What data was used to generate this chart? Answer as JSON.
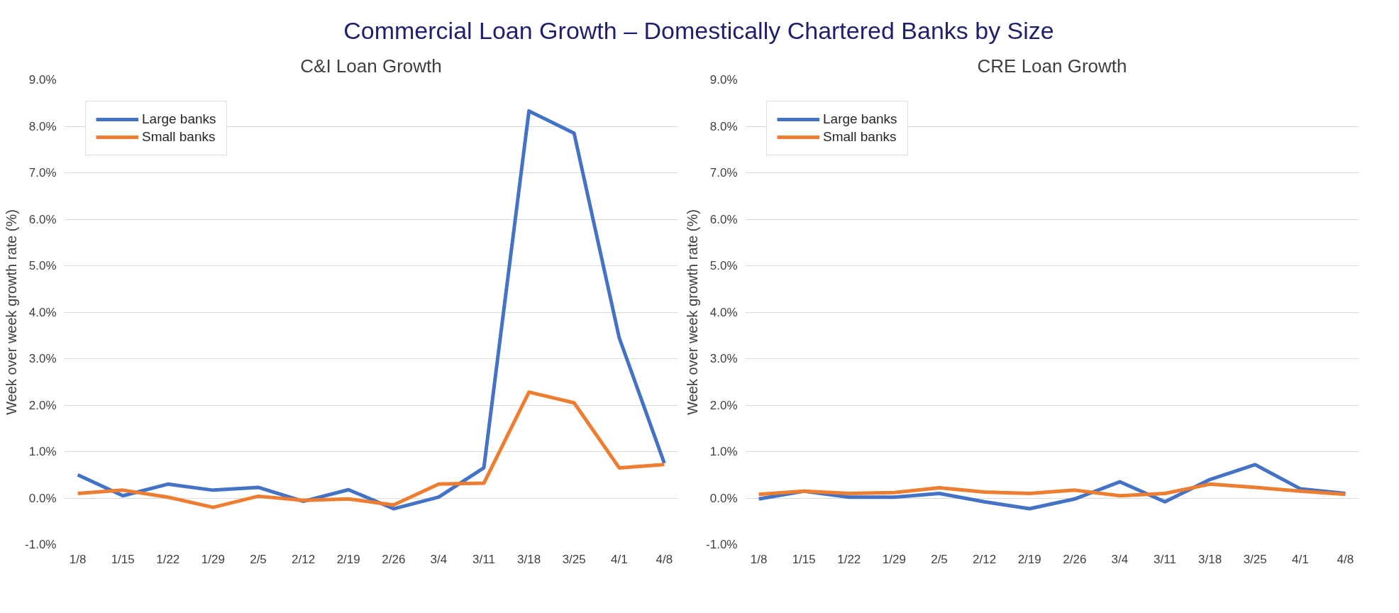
{
  "chart_data": [
    {
      "type": "line",
      "title": "Commercial Loan Growth – Domestically Chartered Banks by Size",
      "subtitle": "C&I Loan Growth",
      "ylabel": "Week over week growth rate (%)",
      "categories": [
        "1/8",
        "1/15",
        "1/22",
        "1/29",
        "2/5",
        "2/12",
        "2/19",
        "2/26",
        "3/4",
        "3/11",
        "3/18",
        "3/25",
        "4/1",
        "4/8"
      ],
      "series": [
        {
          "name": "Large banks",
          "color": "#4472c4",
          "values": [
            0.5,
            0.05,
            0.3,
            0.17,
            0.23,
            -0.07,
            0.18,
            -0.23,
            0.02,
            0.65,
            8.33,
            7.85,
            3.45,
            0.75
          ]
        },
        {
          "name": "Small banks",
          "color": "#ed7d31",
          "values": [
            0.1,
            0.17,
            0.02,
            -0.2,
            0.04,
            -0.05,
            -0.02,
            -0.15,
            0.3,
            0.32,
            2.28,
            2.05,
            0.65,
            0.72
          ]
        }
      ],
      "ylim": [
        -1,
        9
      ],
      "yticks": [
        {
          "value": -1,
          "label": "-1.0%"
        },
        {
          "value": 0,
          "label": "0.0%"
        },
        {
          "value": 1,
          "label": "1.0%"
        },
        {
          "value": 2,
          "label": "2.0%"
        },
        {
          "value": 3,
          "label": "3.0%"
        },
        {
          "value": 4,
          "label": "4.0%"
        },
        {
          "value": 5,
          "label": "5.0%"
        },
        {
          "value": 6,
          "label": "6.0%"
        },
        {
          "value": 7,
          "label": "7.0%"
        },
        {
          "value": 8,
          "label": "8.0%"
        },
        {
          "value": 9,
          "label": "9.0%"
        }
      ],
      "grid": "y",
      "legend": "top left",
      "marker": "none",
      "line_style": "solid"
    },
    {
      "type": "line",
      "title": "CRE Loan Growth",
      "ylabel": "Week over week growth rate (%)",
      "categories": [
        "1/8",
        "1/15",
        "1/22",
        "1/29",
        "2/5",
        "2/12",
        "2/19",
        "2/26",
        "3/4",
        "3/11",
        "3/18",
        "3/25",
        "4/1",
        "4/8"
      ],
      "series": [
        {
          "name": "Large banks",
          "color": "#4472c4",
          "values": [
            -0.02,
            0.15,
            0.02,
            0.02,
            0.1,
            -0.08,
            -0.23,
            -0.02,
            0.35,
            -0.08,
            0.4,
            0.72,
            0.2,
            0.1
          ]
        },
        {
          "name": "Small banks",
          "color": "#ed7d31",
          "values": [
            0.08,
            0.15,
            0.1,
            0.12,
            0.22,
            0.13,
            0.1,
            0.17,
            0.05,
            0.1,
            0.3,
            0.23,
            0.15,
            0.08
          ]
        }
      ],
      "ylim": [
        -1,
        9
      ],
      "yticks": [
        {
          "value": -1,
          "label": "-1.0%"
        },
        {
          "value": 0,
          "label": "0.0%"
        },
        {
          "value": 1,
          "label": "1.0%"
        },
        {
          "value": 2,
          "label": "2.0%"
        },
        {
          "value": 3,
          "label": "3.0%"
        },
        {
          "value": 4,
          "label": "4.0%"
        },
        {
          "value": 5,
          "label": "5.0%"
        },
        {
          "value": 6,
          "label": "6.0%"
        },
        {
          "value": 7,
          "label": "7.0%"
        },
        {
          "value": 8,
          "label": "8.0%"
        },
        {
          "value": 9,
          "label": "9.0%"
        }
      ],
      "grid": "y",
      "legend": "top left",
      "marker": "none",
      "line_style": "solid"
    }
  ]
}
